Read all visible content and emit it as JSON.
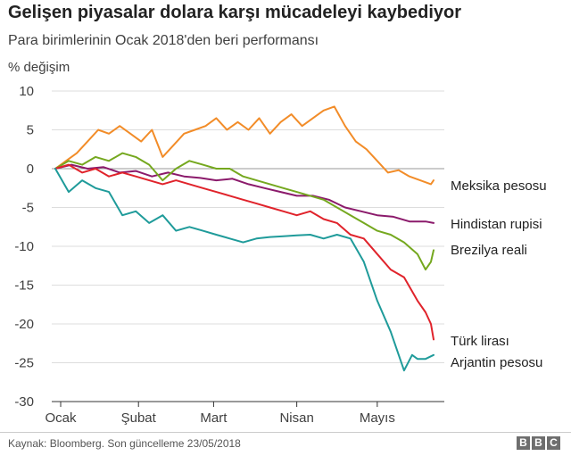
{
  "title": "Gelişen piyasalar dolara karşı mücadeleyi kaybediyor",
  "subtitle": "Para birimlerinin Ocak 2018'den beri performansı",
  "source": "Kaynak: Bloomberg. Son güncelleme 23/05/2018",
  "logo": [
    "B",
    "B",
    "C"
  ],
  "chart_data": {
    "type": "line",
    "ylabel": "% değişim",
    "ylim": [
      -30,
      10
    ],
    "yticks": [
      10,
      5,
      0,
      -5,
      -10,
      -15,
      -20,
      -25,
      -30
    ],
    "xlim": [
      0,
      143
    ],
    "xticks": [
      {
        "label": "Ocak",
        "value": 2
      },
      {
        "label": "Şubat",
        "value": 31
      },
      {
        "label": "Mart",
        "value": 59
      },
      {
        "label": "Nisan",
        "value": 90
      },
      {
        "label": "Mayıs",
        "value": 120
      }
    ],
    "grid": true,
    "series": [
      {
        "name": "Meksika pesosu",
        "color": "#f28c28",
        "x": [
          0,
          4,
          8,
          12,
          16,
          20,
          24,
          28,
          32,
          36,
          40,
          44,
          48,
          52,
          56,
          60,
          64,
          68,
          72,
          76,
          80,
          84,
          88,
          92,
          96,
          100,
          104,
          108,
          112,
          116,
          120,
          124,
          128,
          132,
          136,
          140,
          141
        ],
        "values": [
          0,
          1,
          2,
          3.5,
          5,
          4.5,
          5.5,
          4.5,
          3.5,
          5,
          1.5,
          3,
          4.5,
          5,
          5.5,
          6.5,
          5,
          6,
          5,
          6.5,
          4.5,
          6,
          7,
          5.5,
          6.5,
          7.5,
          8,
          5.5,
          3.5,
          2.5,
          1,
          -0.5,
          -0.2,
          -1,
          -1.5,
          -2,
          -1.5
        ]
      },
      {
        "name": "Hindistan rupisi",
        "color": "#8b1a6b",
        "x": [
          0,
          6,
          12,
          18,
          24,
          30,
          36,
          42,
          48,
          54,
          60,
          66,
          72,
          78,
          84,
          90,
          96,
          102,
          108,
          114,
          120,
          126,
          132,
          138,
          141
        ],
        "values": [
          0,
          0.5,
          0,
          0.2,
          -0.5,
          -0.3,
          -1,
          -0.5,
          -1,
          -1.2,
          -1.5,
          -1.3,
          -2,
          -2.5,
          -3,
          -3.5,
          -3.5,
          -4,
          -5,
          -5.5,
          -6,
          -6.2,
          -6.8,
          -6.8,
          -7
        ]
      },
      {
        "name": "Brezilya reali",
        "color": "#75a81f",
        "x": [
          0,
          5,
          10,
          15,
          20,
          25,
          30,
          35,
          40,
          45,
          50,
          55,
          60,
          65,
          70,
          75,
          80,
          85,
          90,
          95,
          100,
          105,
          110,
          115,
          120,
          125,
          130,
          135,
          138,
          140,
          141
        ],
        "values": [
          0,
          1,
          0.5,
          1.5,
          1,
          2,
          1.5,
          0.5,
          -1.5,
          0,
          1,
          0.5,
          0,
          0,
          -1,
          -1.5,
          -2,
          -2.5,
          -3,
          -3.5,
          -4,
          -5,
          -6,
          -7,
          -8,
          -8.5,
          -9.5,
          -11,
          -13,
          -12,
          -10.5
        ]
      },
      {
        "name": "Türk lirası",
        "color": "#e0232b",
        "x": [
          0,
          5,
          10,
          15,
          20,
          25,
          30,
          35,
          40,
          45,
          50,
          55,
          60,
          65,
          70,
          75,
          80,
          85,
          90,
          95,
          100,
          105,
          110,
          115,
          120,
          125,
          130,
          135,
          138,
          140,
          141
        ],
        "values": [
          0,
          0.5,
          -0.5,
          0,
          -1,
          -0.5,
          -1,
          -1.5,
          -2,
          -1.5,
          -2,
          -2.5,
          -3,
          -3.5,
          -4,
          -4.5,
          -5,
          -5.5,
          -6,
          -5.5,
          -6.5,
          -7,
          -8.5,
          -9,
          -11,
          -13,
          -14,
          -17,
          -18.5,
          -20,
          -22
        ]
      },
      {
        "name": "Arjantin pesosu",
        "color": "#1f9b9a",
        "x": [
          0,
          5,
          10,
          15,
          20,
          25,
          30,
          35,
          40,
          45,
          50,
          55,
          60,
          65,
          70,
          75,
          80,
          85,
          90,
          95,
          100,
          105,
          110,
          115,
          120,
          125,
          128,
          130,
          133,
          135,
          138,
          141
        ],
        "values": [
          0,
          -3,
          -1.5,
          -2.5,
          -3,
          -6,
          -5.5,
          -7,
          -6,
          -8,
          -7.5,
          -8,
          -8.5,
          -9,
          -9.5,
          -9,
          -8.8,
          -8.7,
          -8.6,
          -8.5,
          -9,
          -8.5,
          -9,
          -12,
          -17,
          -21,
          -24,
          -26,
          -24,
          -24.5,
          -24.5,
          -24
        ]
      }
    ]
  }
}
